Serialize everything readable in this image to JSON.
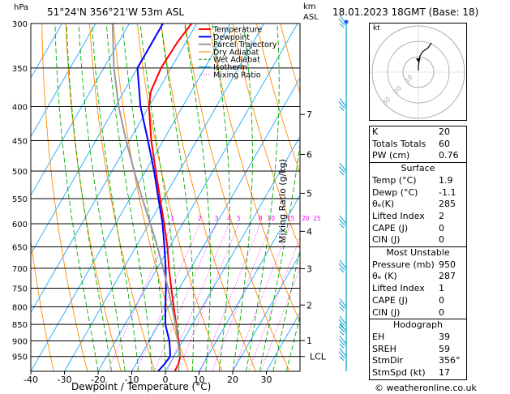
{
  "header": {
    "hpa_unit": "hPa",
    "location": "51°24'N  356°21'W  53m  ASL",
    "km_unit": "km",
    "asl_unit": "ASL",
    "datetime": "18.01.2023  18GMT  (Base: 18)"
  },
  "footer": {
    "copyright": "© weatheronline.co.uk"
  },
  "chart_data": {
    "type": "line",
    "xlabel": "Dewpoint / Temperature (°C)",
    "ylabel": "Mixing Ratio (g/kg)",
    "pressure_levels": [
      300,
      350,
      400,
      450,
      500,
      550,
      600,
      650,
      700,
      750,
      800,
      850,
      900,
      950
    ],
    "temperature_ticks": [
      -40,
      -30,
      -20,
      -10,
      0,
      10,
      20,
      30
    ],
    "xlim": [
      -40,
      40
    ],
    "ylim_hpa": [
      300,
      1000
    ],
    "yscale": "log",
    "km_ticks": [
      {
        "km": "1",
        "hpa": 899
      },
      {
        "km": "2",
        "hpa": 795
      },
      {
        "km": "3",
        "hpa": 701
      },
      {
        "km": "4",
        "hpa": 616
      },
      {
        "km": "5",
        "hpa": 540
      },
      {
        "km": "6",
        "hpa": 472
      },
      {
        "km": "7",
        "hpa": 411
      }
    ],
    "lcl": {
      "label": "LCL",
      "hpa": 950
    },
    "mixing_ratio_labels": [
      "1",
      "2",
      "3",
      "4",
      "5",
      "8",
      "10",
      "15",
      "20",
      "25"
    ],
    "legend": [
      {
        "name": "Temperature",
        "color": "#ff0000"
      },
      {
        "name": "Dewpoint",
        "color": "#0000ff"
      },
      {
        "name": "Parcel Trajectory",
        "color": "#999999"
      },
      {
        "name": "Dry Adiabat",
        "color": "#ff8c00"
      },
      {
        "name": "Wet Adiabat",
        "color": "#00a000"
      },
      {
        "name": "Isotherm",
        "color": "#00a0ff"
      },
      {
        "name": "Mixing Ratio",
        "color": "#ff00ff"
      }
    ],
    "series": [
      {
        "name": "Temperature",
        "points": [
          [
            1000,
            2.8
          ],
          [
            975,
            2.6
          ],
          [
            950,
            1.9
          ],
          [
            925,
            0.3
          ],
          [
            900,
            -1.2
          ],
          [
            875,
            -3.0
          ],
          [
            850,
            -4.8
          ],
          [
            800,
            -8.5
          ],
          [
            750,
            -12.4
          ],
          [
            700,
            -16.5
          ],
          [
            650,
            -20.6
          ],
          [
            600,
            -25.5
          ],
          [
            550,
            -31.0
          ],
          [
            500,
            -37.0
          ],
          [
            450,
            -43.5
          ],
          [
            400,
            -50.0
          ],
          [
            380,
            -52.0
          ],
          [
            350,
            -53.0
          ],
          [
            320,
            -52.5
          ],
          [
            300,
            -51.5
          ]
        ]
      },
      {
        "name": "Dewpoint",
        "points": [
          [
            1000,
            -2.2
          ],
          [
            975,
            -1.5
          ],
          [
            950,
            -1.1
          ],
          [
            925,
            -2.5
          ],
          [
            900,
            -4.0
          ],
          [
            875,
            -6.0
          ],
          [
            850,
            -8.0
          ],
          [
            800,
            -11.0
          ],
          [
            750,
            -14.0
          ],
          [
            700,
            -17.5
          ],
          [
            650,
            -21.5
          ],
          [
            600,
            -26.0
          ],
          [
            550,
            -31.5
          ],
          [
            500,
            -37.5
          ],
          [
            450,
            -44.5
          ],
          [
            400,
            -52.5
          ],
          [
            350,
            -60.0
          ],
          [
            320,
            -60.0
          ],
          [
            300,
            -60.0
          ]
        ]
      },
      {
        "name": "Parcel Trajectory",
        "points": [
          [
            950,
            1.9
          ],
          [
            900,
            -1.5
          ],
          [
            850,
            -5.0
          ],
          [
            800,
            -9.0
          ],
          [
            750,
            -13.4
          ],
          [
            700,
            -18.2
          ],
          [
            650,
            -23.6
          ],
          [
            600,
            -29.6
          ],
          [
            550,
            -36.3
          ],
          [
            500,
            -43.4
          ],
          [
            450,
            -51.0
          ],
          [
            400,
            -59.0
          ],
          [
            350,
            -67.0
          ],
          [
            300,
            -75.0
          ]
        ]
      }
    ]
  },
  "wind_barbs": [
    {
      "hpa": 950
    },
    {
      "hpa": 910
    },
    {
      "hpa": 870
    },
    {
      "hpa": 850
    },
    {
      "hpa": 800
    },
    {
      "hpa": 700
    },
    {
      "hpa": 600
    },
    {
      "hpa": 500
    },
    {
      "hpa": 400
    },
    {
      "hpa": 300
    }
  ],
  "hodograph": {
    "unit": "kt",
    "ring_labels": [
      "10",
      "20",
      "30"
    ],
    "trace": [
      [
        0,
        -2
      ],
      [
        0,
        -8
      ],
      [
        1,
        -14
      ],
      [
        2,
        -20
      ],
      [
        5,
        -25
      ],
      [
        12,
        -30
      ],
      [
        16,
        -36
      ]
    ],
    "storm_motion": [
      0,
      -17
    ]
  },
  "indices": {
    "k": {
      "label": "K",
      "value": "20"
    },
    "tt": {
      "label": "Totals Totals",
      "value": "60"
    },
    "pw": {
      "label": "PW (cm)",
      "value": "0.76"
    }
  },
  "surface": {
    "title": "Surface",
    "rows": [
      {
        "label": "Temp (°C)",
        "value": "1.9"
      },
      {
        "label": "Dewp (°C)",
        "value": "-1.1"
      },
      {
        "label": "θₑ(K)",
        "value": "285"
      },
      {
        "label": "Lifted Index",
        "value": "2"
      },
      {
        "label": "CAPE (J)",
        "value": "0"
      },
      {
        "label": "CIN (J)",
        "value": "0"
      }
    ]
  },
  "unstable": {
    "title": "Most Unstable",
    "rows": [
      {
        "label": "Pressure (mb)",
        "value": "950"
      },
      {
        "label": "θₑ (K)",
        "value": "287"
      },
      {
        "label": "Lifted Index",
        "value": "1"
      },
      {
        "label": "CAPE (J)",
        "value": "0"
      },
      {
        "label": "CIN (J)",
        "value": "0"
      }
    ]
  },
  "hodo_table": {
    "title": "Hodograph",
    "rows": [
      {
        "label": "EH",
        "value": "39"
      },
      {
        "label": "SREH",
        "value": "59"
      },
      {
        "label": "StmDir",
        "value": "356°"
      },
      {
        "label": "StmSpd (kt)",
        "value": "17"
      }
    ]
  }
}
